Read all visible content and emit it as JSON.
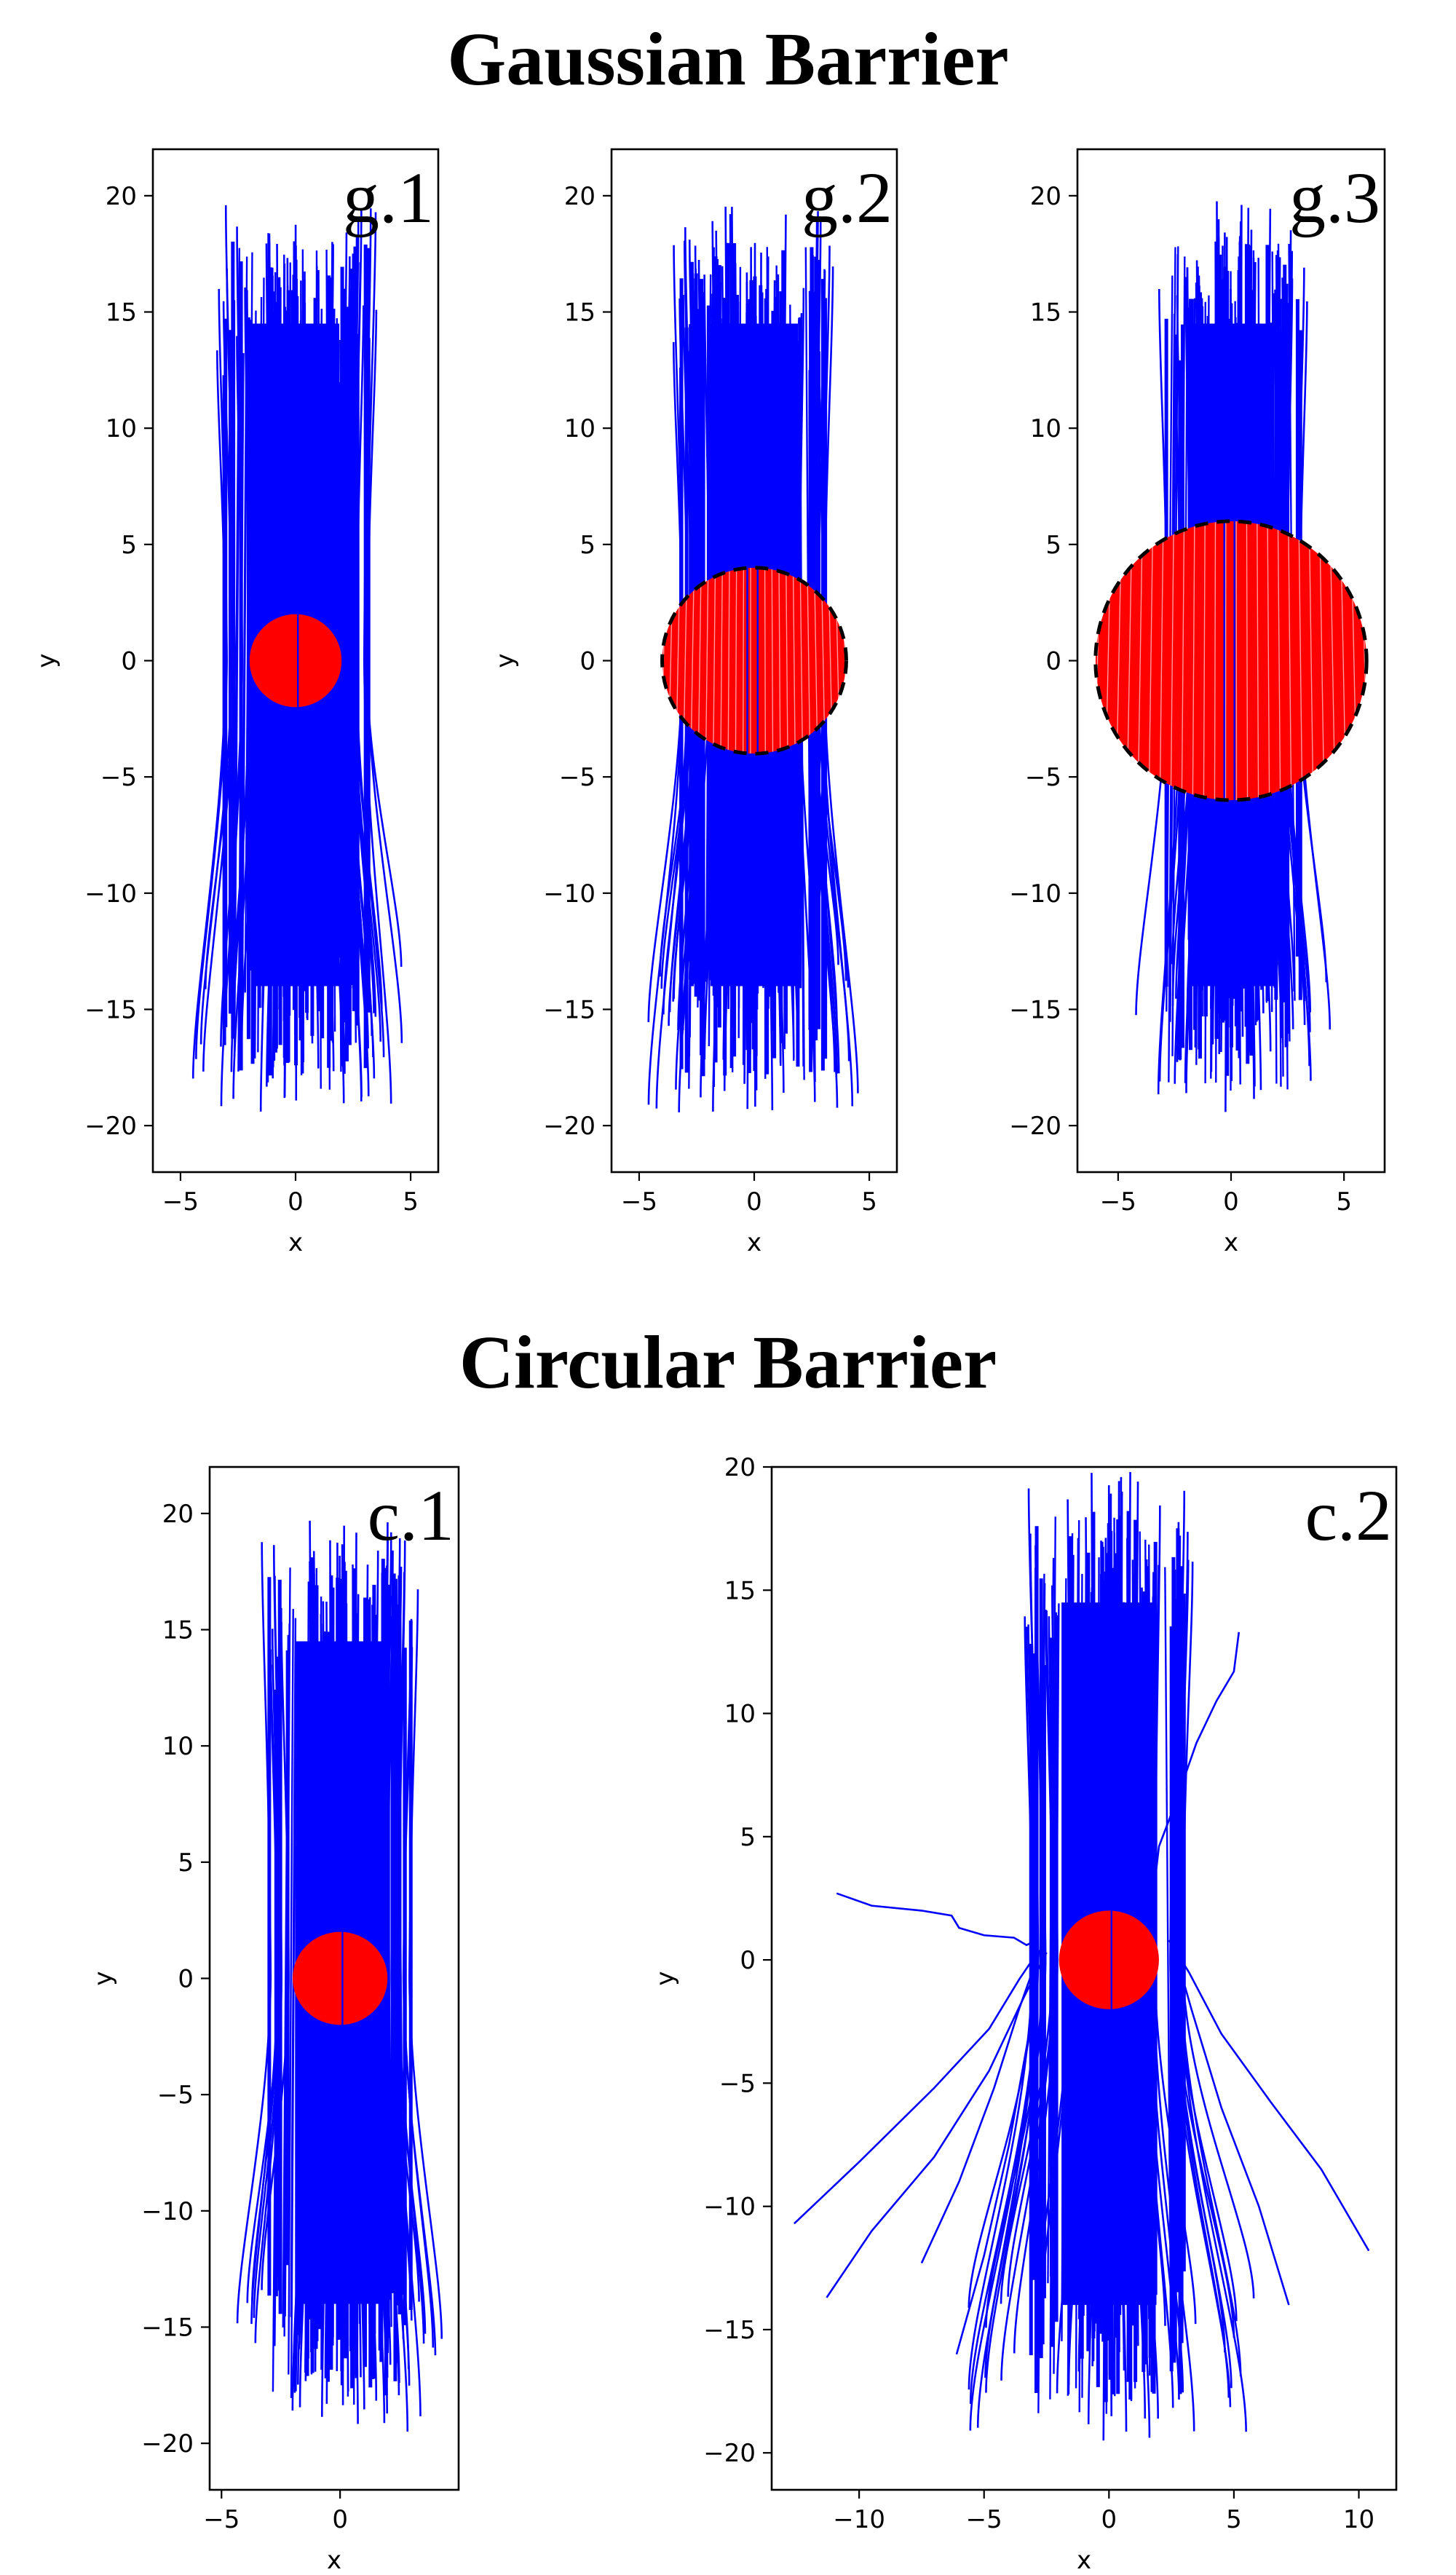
{
  "sections": {
    "gaussian_title": "Gaussian Barrier",
    "circular_title": "Circular Barrier"
  },
  "colors": {
    "trajectory": "#0000ff",
    "barrier": "#ff0000",
    "dashed_circle": "#000000"
  },
  "chart_data": [
    {
      "id": "g1",
      "type": "line",
      "label": "g.1",
      "xlabel": "x",
      "ylabel": "y",
      "xlim": [
        -6.2,
        6.2
      ],
      "ylim": [
        -22,
        22
      ],
      "xticks": [
        -5,
        0,
        5
      ],
      "yticks": [
        -20,
        -15,
        -10,
        -5,
        0,
        5,
        10,
        15,
        20
      ],
      "barrier": {
        "shape": "disk",
        "radius": 2,
        "fill": "solid",
        "dashed_outline": false
      },
      "highlight_inside": false,
      "trajectory_count": 60
    },
    {
      "id": "g2",
      "type": "line",
      "label": "g.2",
      "xlabel": "x",
      "ylabel": "y",
      "xlim": [
        -6.2,
        6.2
      ],
      "ylim": [
        -22,
        22
      ],
      "xticks": [
        -5,
        0,
        5
      ],
      "yticks": [
        -20,
        -15,
        -10,
        -5,
        0,
        5,
        10,
        15,
        20
      ],
      "barrier": {
        "shape": "disk",
        "radius": 4,
        "fill": "trajectories",
        "dashed_outline": true
      },
      "highlight_inside": true,
      "trajectory_count": 60
    },
    {
      "id": "g3",
      "type": "line",
      "label": "g.3",
      "xlabel": "x",
      "ylabel": "",
      "xlim": [
        -6.8,
        6.8
      ],
      "ylim": [
        -22,
        22
      ],
      "xticks": [
        -5,
        0,
        5
      ],
      "yticks": [
        -20,
        -15,
        -10,
        -5,
        0,
        5,
        10,
        15,
        20
      ],
      "barrier": {
        "shape": "disk",
        "radius": 6,
        "fill": "trajectories",
        "dashed_outline": true
      },
      "highlight_inside": true,
      "trajectory_count": 60
    },
    {
      "id": "c1",
      "type": "line",
      "label": "c.1",
      "xlabel": "x",
      "ylabel": "y",
      "xlim": [
        -5.5,
        5
      ],
      "ylim": [
        -22,
        22
      ],
      "xticks": [
        -5,
        0
      ],
      "yticks": [
        -20,
        -15,
        -10,
        -5,
        0,
        5,
        10,
        15,
        20
      ],
      "barrier": {
        "shape": "disk",
        "radius": 2,
        "fill": "solid",
        "dashed_outline": false
      },
      "highlight_inside": false,
      "trajectory_count": 60
    },
    {
      "id": "c2",
      "type": "line",
      "label": "c.2",
      "xlabel": "x",
      "ylabel": "y",
      "xlim": [
        -13.5,
        11.5
      ],
      "ylim": [
        -21.5,
        20
      ],
      "xticks": [
        -10,
        -5,
        0,
        5,
        10
      ],
      "yticks": [
        -20,
        -15,
        -10,
        -5,
        0,
        5,
        10,
        15,
        20
      ],
      "barrier": {
        "shape": "disk",
        "radius": 2,
        "fill": "solid",
        "dashed_outline": false
      },
      "highlight_inside": false,
      "trajectory_count": 60,
      "scattered_trajectories": [
        {
          "points": [
            [
              -10.9,
              2.7
            ],
            [
              -9.5,
              2.2
            ],
            [
              -7.5,
              2.0
            ],
            [
              -6.3,
              1.8
            ],
            [
              -6.0,
              1.3
            ],
            [
              -5.0,
              1.0
            ],
            [
              -3.8,
              0.9
            ],
            [
              -3.3,
              0.6
            ],
            [
              -2.9,
              0.8
            ]
          ]
        },
        {
          "points": [
            [
              5.2,
              13.3
            ],
            [
              5.0,
              11.7
            ],
            [
              4.3,
              10.5
            ],
            [
              3.5,
              8.8
            ],
            [
              2.6,
              6.2
            ],
            [
              2.0,
              4.6
            ],
            [
              1.7,
              2.0
            ]
          ]
        },
        {
          "points": [
            [
              -12.6,
              -10.7
            ],
            [
              -10.0,
              -8.2
            ],
            [
              -7.0,
              -5.2
            ],
            [
              -4.8,
              -2.8
            ],
            [
              -3.6,
              -0.8
            ],
            [
              -2.8,
              0.4
            ]
          ]
        },
        {
          "points": [
            [
              -11.3,
              -13.7
            ],
            [
              -9.5,
              -11.0
            ],
            [
              -7.0,
              -8.0
            ],
            [
              -4.8,
              -4.5
            ],
            [
              -3.4,
              -1.5
            ],
            [
              -2.5,
              0.3
            ]
          ]
        },
        {
          "points": [
            [
              -7.5,
              -12.3
            ],
            [
              -6.0,
              -9.0
            ],
            [
              -4.6,
              -5.2
            ],
            [
              -3.6,
              -2.0
            ],
            [
              -2.9,
              0.0
            ]
          ]
        },
        {
          "points": [
            [
              10.4,
              -11.8
            ],
            [
              8.5,
              -8.5
            ],
            [
              6.5,
              -5.8
            ],
            [
              4.5,
              -3.0
            ],
            [
              3.2,
              -0.5
            ],
            [
              2.4,
              0.8
            ]
          ]
        },
        {
          "points": [
            [
              7.2,
              -14.0
            ],
            [
              6.0,
              -10.0
            ],
            [
              4.5,
              -6.0
            ],
            [
              3.3,
              -2.0
            ],
            [
              2.6,
              0.5
            ]
          ]
        },
        {
          "points": [
            [
              -6.1,
              -16.0
            ],
            [
              -5.0,
              -12.0
            ],
            [
              -4.0,
              -7.5
            ],
            [
              -3.2,
              -3.0
            ],
            [
              -2.8,
              0.4
            ]
          ]
        }
      ]
    }
  ]
}
